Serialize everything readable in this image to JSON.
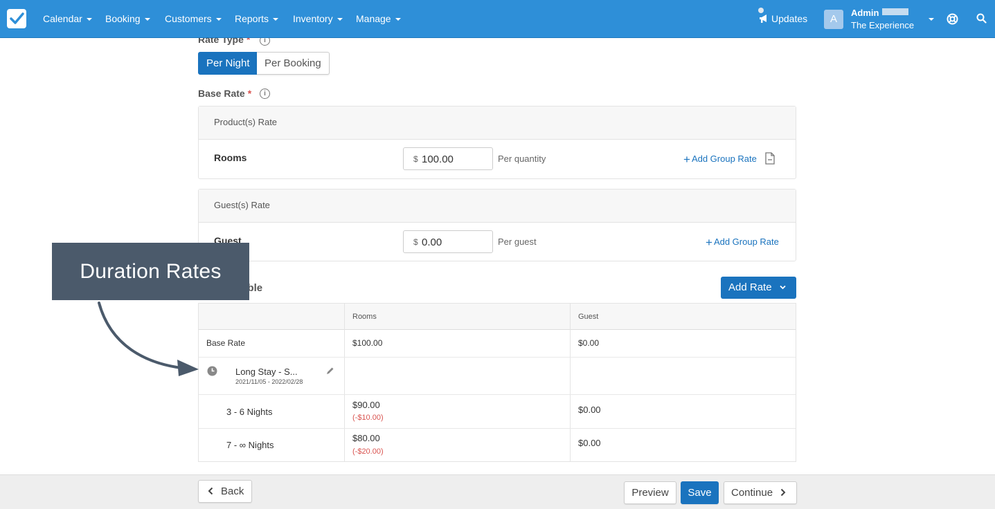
{
  "nav": {
    "items": [
      "Calendar",
      "Booking",
      "Customers",
      "Reports",
      "Inventory",
      "Manage"
    ],
    "updates": "Updates",
    "avatar_letter": "A",
    "admin_name": "Admin",
    "org_name": "The Experience"
  },
  "form": {
    "rate_type_label": "Rate Type",
    "rate_type_options": [
      "Per Night",
      "Per Booking"
    ],
    "selected_rate_type": "Per Night",
    "base_rate_label": "Base Rate",
    "required_mark": "*",
    "info_glyph": "i",
    "product_rate": {
      "heading": "Product(s) Rate",
      "label": "Rooms",
      "currency": "$",
      "value": "100.00",
      "unit": "Per quantity",
      "add_group": "Add Group Rate"
    },
    "guest_rate": {
      "heading": "Guest(s) Rate",
      "label": "Guest",
      "currency": "$",
      "value": "0.00",
      "unit": "Per guest",
      "add_group": "Add Group Rate"
    }
  },
  "pricing": {
    "title": "Pricing Table",
    "add_rate": "Add Rate",
    "columns": [
      "",
      "Rooms",
      "Guest"
    ],
    "base_rate": {
      "label": "Base Rate",
      "rooms": "$100.00",
      "guest": "$0.00"
    },
    "duration_group": {
      "name": "Long Stay - S...",
      "dates": "2021/11/05 - 2022/02/28"
    },
    "rows": [
      {
        "label": "3 - 6 Nights",
        "rooms": "$90.00",
        "rooms_diff": "(-$10.00)",
        "guest": "$0.00"
      },
      {
        "label": "7 - ∞ Nights",
        "rooms": "$80.00",
        "rooms_diff": "(-$20.00)",
        "guest": "$0.00"
      }
    ]
  },
  "footer": {
    "back": "Back",
    "preview": "Preview",
    "save": "Save",
    "continue": "Continue"
  },
  "annotation": {
    "text": "Duration Rates"
  },
  "colors": {
    "nav": "#2e8fd8",
    "primary": "#1a73be",
    "danger": "#d9534f",
    "callout": "#4b5a6b"
  }
}
